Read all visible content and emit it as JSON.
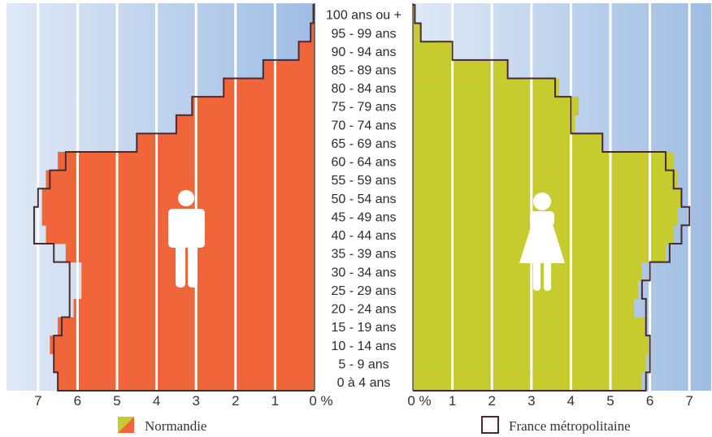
{
  "chart_data": {
    "type": "bar",
    "subtype": "population-pyramid",
    "age_groups": [
      "0 à 4 ans",
      "5 - 9 ans",
      "10 - 14 ans",
      "15 - 19 ans",
      "20 - 24 ans",
      "25 - 29 ans",
      "30 - 34 ans",
      "35 - 39 ans",
      "40 - 44 ans",
      "45 - 49 ans",
      "50 - 54 ans",
      "55 - 59 ans",
      "60 - 64 ans",
      "65 - 69 ans",
      "70 - 74 ans",
      "75 - 79 ans",
      "80 - 84 ans",
      "85 - 89 ans",
      "90 - 94 ans",
      "95 - 99 ans",
      "100 ans ou +"
    ],
    "unit": "%",
    "xlim": [
      0,
      7
    ],
    "left_ticks": [
      "7",
      "6",
      "5",
      "4",
      "3",
      "2",
      "1",
      "0 %"
    ],
    "right_ticks": [
      "0 %",
      "1",
      "2",
      "3",
      "4",
      "5",
      "6",
      "7"
    ],
    "series": [
      {
        "name": "Normandie",
        "side": "left",
        "values": [
          6.5,
          6.6,
          6.7,
          6.5,
          6.1,
          5.9,
          5.9,
          6.3,
          6.8,
          6.9,
          6.9,
          6.8,
          6.5,
          4.5,
          3.5,
          3.1,
          2.3,
          1.3,
          0.4,
          0.1,
          0.03
        ]
      },
      {
        "name": "Normandie",
        "side": "right",
        "values": [
          5.8,
          5.9,
          6.0,
          5.9,
          5.6,
          5.7,
          5.8,
          6.4,
          6.6,
          6.7,
          6.8,
          6.7,
          6.6,
          4.8,
          4.1,
          4.2,
          3.7,
          2.4,
          1.0,
          0.2,
          0.05
        ]
      },
      {
        "name": "France métropolitaine",
        "side": "left",
        "values": [
          6.5,
          6.6,
          6.6,
          6.4,
          6.2,
          6.2,
          6.2,
          6.6,
          7.1,
          7.1,
          7.0,
          6.7,
          6.3,
          4.5,
          3.5,
          3.1,
          2.3,
          1.3,
          0.4,
          0.1,
          0.03
        ]
      },
      {
        "name": "France métropolitaine",
        "side": "right",
        "values": [
          5.9,
          6.0,
          6.0,
          5.9,
          5.9,
          5.8,
          6.0,
          6.5,
          6.8,
          7.0,
          6.8,
          6.6,
          6.4,
          4.8,
          4.0,
          4.0,
          3.6,
          2.4,
          1.0,
          0.2,
          0.05
        ]
      }
    ],
    "legend": [
      "Normandie",
      "France métropolitaine"
    ],
    "legend_position": "bottom",
    "grid": true
  },
  "colors": {
    "male_fill": "#f0653a",
    "female_fill": "#c6cb2e",
    "outline": "#4a2a2f",
    "grid_line": "#ffffff",
    "background_light": "#dfe9f6",
    "background_dark": "#9fbde3"
  },
  "icons": [
    "male-icon",
    "female-icon"
  ]
}
